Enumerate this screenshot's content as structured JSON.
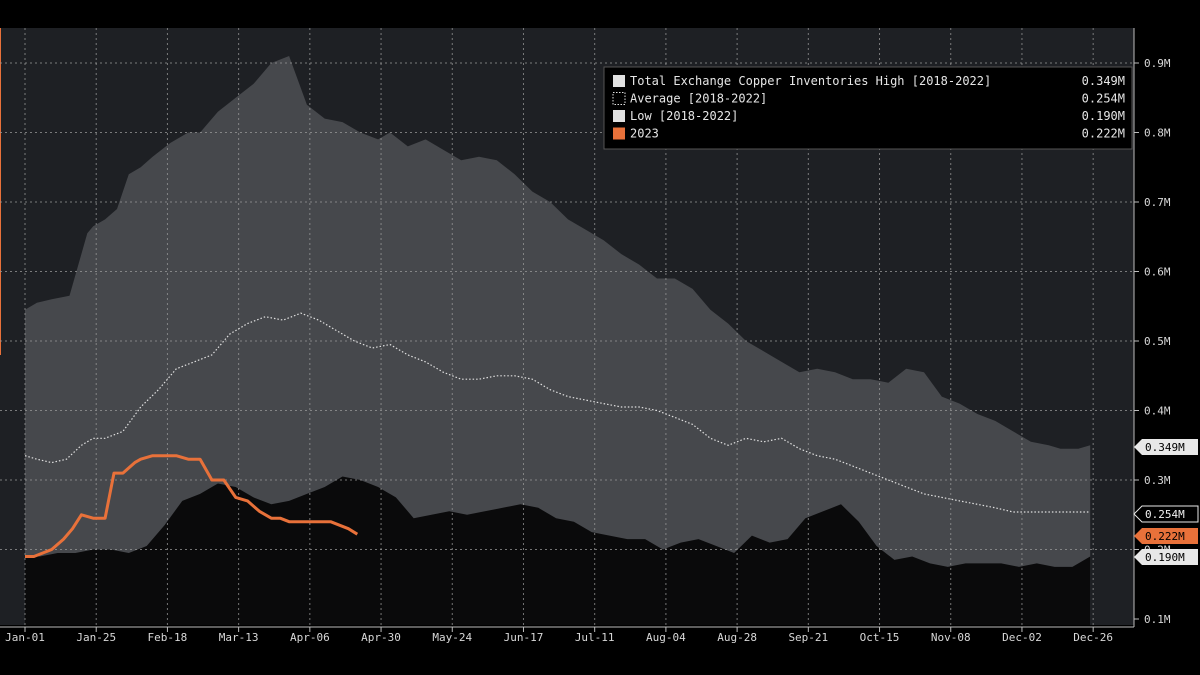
{
  "chart_data": {
    "type": "area",
    "x_ticks": [
      "Jan-01",
      "Jan-25",
      "Feb-18",
      "Mar-13",
      "Apr-06",
      "Apr-30",
      "May-24",
      "Jun-17",
      "Jul-11",
      "Aug-04",
      "Aug-28",
      "Sep-21",
      "Oct-15",
      "Nov-08",
      "Dec-02",
      "Dec-26"
    ],
    "y_ticks": [
      "0.9M",
      "0.8M",
      "0.7M",
      "0.6M",
      "0.5M",
      "0.4M",
      "0.3M",
      "0.2M",
      "0.1M"
    ],
    "ylim": [
      0.1,
      0.92
    ],
    "xlim_day": [
      1,
      366
    ],
    "grid": true,
    "axis_side": "right",
    "legend_position": "top-right",
    "legend": [
      {
        "name": "Total Exchange Copper Inventories High [2018-2022]",
        "value": "0.349M",
        "style": "high"
      },
      {
        "name": "Average  [2018-2022]",
        "value": "0.254M",
        "style": "avg"
      },
      {
        "name": "Low  [2018-2022]",
        "value": "0.190M",
        "style": "low"
      },
      {
        "name": "2023",
        "value": "0.222M",
        "style": "y2023"
      }
    ],
    "colors": {
      "background": "#1e2024",
      "high_fill": "#46484c",
      "low_fill": "#0a0a0b",
      "average_line": "#e0e0e0",
      "series_2023": "#e8713a",
      "grid": "#9a9a9a"
    },
    "series": [
      {
        "key": "high",
        "x": [
          1,
          5,
          10,
          16,
          22,
          24,
          28,
          32,
          36,
          40,
          44,
          50,
          56,
          60,
          66,
          72,
          78,
          84,
          90,
          96,
          102,
          108,
          114,
          120,
          124,
          130,
          136,
          142,
          148,
          154,
          160,
          166,
          172,
          178,
          184,
          190,
          196,
          202,
          208,
          214,
          220,
          226,
          232,
          238,
          244,
          250,
          256,
          262,
          268,
          274,
          280,
          286,
          292,
          298,
          304,
          310,
          316,
          322,
          328,
          334,
          340,
          346,
          350,
          356,
          360
        ],
        "values": [
          0.545,
          0.555,
          0.56,
          0.565,
          0.655,
          0.665,
          0.675,
          0.69,
          0.74,
          0.75,
          0.765,
          0.785,
          0.8,
          0.8,
          0.83,
          0.85,
          0.87,
          0.9,
          0.91,
          0.84,
          0.82,
          0.815,
          0.8,
          0.79,
          0.8,
          0.78,
          0.79,
          0.775,
          0.76,
          0.765,
          0.76,
          0.74,
          0.715,
          0.7,
          0.675,
          0.66,
          0.645,
          0.625,
          0.61,
          0.59,
          0.59,
          0.575,
          0.545,
          0.525,
          0.5,
          0.485,
          0.47,
          0.455,
          0.46,
          0.455,
          0.445,
          0.445,
          0.44,
          0.46,
          0.455,
          0.42,
          0.41,
          0.395,
          0.385,
          0.37,
          0.355,
          0.35,
          0.345,
          0.345,
          0.35
        ]
      },
      {
        "key": "low",
        "x": [
          1,
          6,
          12,
          18,
          24,
          30,
          36,
          42,
          48,
          54,
          60,
          66,
          72,
          78,
          84,
          90,
          96,
          102,
          108,
          114,
          120,
          126,
          132,
          138,
          144,
          150,
          156,
          162,
          168,
          174,
          180,
          186,
          192,
          198,
          204,
          210,
          216,
          222,
          228,
          234,
          240,
          246,
          252,
          258,
          264,
          270,
          276,
          282,
          288,
          294,
          300,
          306,
          312,
          318,
          324,
          330,
          336,
          342,
          348,
          354,
          360
        ],
        "values": [
          0.19,
          0.19,
          0.195,
          0.195,
          0.2,
          0.2,
          0.195,
          0.205,
          0.235,
          0.27,
          0.28,
          0.295,
          0.29,
          0.275,
          0.265,
          0.27,
          0.28,
          0.29,
          0.305,
          0.3,
          0.29,
          0.275,
          0.245,
          0.25,
          0.255,
          0.25,
          0.255,
          0.26,
          0.265,
          0.26,
          0.245,
          0.24,
          0.225,
          0.22,
          0.215,
          0.215,
          0.2,
          0.21,
          0.215,
          0.205,
          0.195,
          0.22,
          0.21,
          0.215,
          0.245,
          0.255,
          0.265,
          0.24,
          0.205,
          0.185,
          0.19,
          0.18,
          0.175,
          0.18,
          0.18,
          0.18,
          0.175,
          0.18,
          0.175,
          0.175,
          0.19
        ]
      },
      {
        "key": "average",
        "x": [
          1,
          5,
          10,
          15,
          20,
          24,
          28,
          34,
          40,
          46,
          52,
          58,
          64,
          70,
          76,
          82,
          88,
          94,
          100,
          106,
          112,
          118,
          124,
          130,
          136,
          142,
          148,
          154,
          160,
          166,
          172,
          178,
          184,
          190,
          196,
          202,
          208,
          214,
          220,
          226,
          232,
          238,
          244,
          250,
          256,
          262,
          268,
          274,
          280,
          286,
          292,
          298,
          304,
          310,
          316,
          322,
          328,
          334,
          340,
          346,
          352,
          356,
          360
        ],
        "values": [
          0.335,
          0.33,
          0.325,
          0.33,
          0.35,
          0.36,
          0.36,
          0.37,
          0.405,
          0.43,
          0.46,
          0.47,
          0.48,
          0.51,
          0.525,
          0.535,
          0.53,
          0.54,
          0.53,
          0.515,
          0.5,
          0.49,
          0.495,
          0.48,
          0.47,
          0.455,
          0.445,
          0.445,
          0.45,
          0.45,
          0.445,
          0.43,
          0.42,
          0.415,
          0.41,
          0.405,
          0.405,
          0.4,
          0.39,
          0.38,
          0.36,
          0.35,
          0.36,
          0.355,
          0.36,
          0.345,
          0.335,
          0.33,
          0.32,
          0.31,
          0.3,
          0.29,
          0.28,
          0.275,
          0.27,
          0.265,
          0.26,
          0.254,
          0.254,
          0.254,
          0.254,
          0.254,
          0.254
        ]
      },
      {
        "key": "2023",
        "name": "2023",
        "x": [
          1,
          4,
          7,
          10,
          14,
          17,
          20,
          24,
          28,
          31,
          34,
          38,
          40,
          44,
          48,
          52,
          56,
          60,
          64,
          68,
          72,
          76,
          80,
          84,
          87,
          90,
          93,
          96,
          100,
          104,
          107,
          110,
          113
        ],
        "values": [
          0.19,
          0.19,
          0.195,
          0.2,
          0.215,
          0.23,
          0.25,
          0.245,
          0.245,
          0.31,
          0.31,
          0.325,
          0.33,
          0.335,
          0.335,
          0.335,
          0.33,
          0.33,
          0.3,
          0.3,
          0.275,
          0.27,
          0.255,
          0.245,
          0.245,
          0.24,
          0.24,
          0.24,
          0.24,
          0.24,
          0.235,
          0.23,
          0.222
        ]
      }
    ],
    "last_value_tags": [
      {
        "label": "0.349M",
        "value": 0.349,
        "style": "high"
      },
      {
        "label": "0.254M",
        "value": 0.254,
        "style": "avg"
      },
      {
        "label": "0.222M",
        "value": 0.222,
        "style": "y2023"
      },
      {
        "label": "0.190M",
        "value": 0.19,
        "style": "low"
      }
    ]
  }
}
